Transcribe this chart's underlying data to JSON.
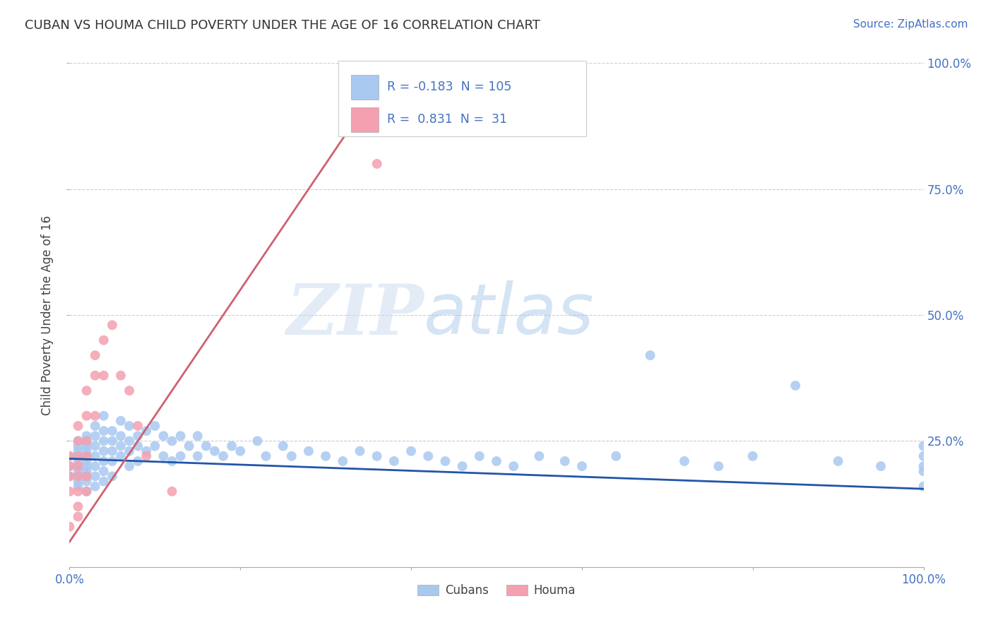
{
  "title": "CUBAN VS HOUMA CHILD POVERTY UNDER THE AGE OF 16 CORRELATION CHART",
  "source_text": "Source: ZipAtlas.com",
  "ylabel": "Child Poverty Under the Age of 16",
  "xlim": [
    0.0,
    1.0
  ],
  "ylim": [
    0.0,
    1.0
  ],
  "grid_color": "#cccccc",
  "background_color": "#ffffff",
  "watermark_zip": "ZIP",
  "watermark_atlas": "atlas",
  "legend_r_cuban": "-0.183",
  "legend_n_cuban": "105",
  "legend_r_houma": "0.831",
  "legend_n_houma": "31",
  "cuban_color": "#a8c8f0",
  "houma_color": "#f4a0b0",
  "cuban_line_color": "#2255aa",
  "houma_line_color": "#d06070",
  "legend_text_color": "#4472c4",
  "title_color": "#333333",
  "right_axis_color": "#4472c4",
  "marker_size": 100,
  "cuban_x": [
    0.0,
    0.0,
    0.0,
    0.01,
    0.01,
    0.01,
    0.01,
    0.01,
    0.01,
    0.01,
    0.01,
    0.01,
    0.01,
    0.02,
    0.02,
    0.02,
    0.02,
    0.02,
    0.02,
    0.02,
    0.02,
    0.02,
    0.02,
    0.02,
    0.03,
    0.03,
    0.03,
    0.03,
    0.03,
    0.03,
    0.03,
    0.04,
    0.04,
    0.04,
    0.04,
    0.04,
    0.04,
    0.04,
    0.05,
    0.05,
    0.05,
    0.05,
    0.05,
    0.06,
    0.06,
    0.06,
    0.06,
    0.07,
    0.07,
    0.07,
    0.07,
    0.08,
    0.08,
    0.08,
    0.09,
    0.09,
    0.1,
    0.1,
    0.11,
    0.11,
    0.12,
    0.12,
    0.13,
    0.13,
    0.14,
    0.15,
    0.15,
    0.16,
    0.17,
    0.18,
    0.19,
    0.2,
    0.22,
    0.23,
    0.25,
    0.26,
    0.28,
    0.3,
    0.32,
    0.34,
    0.36,
    0.38,
    0.4,
    0.42,
    0.44,
    0.46,
    0.48,
    0.5,
    0.52,
    0.55,
    0.58,
    0.6,
    0.64,
    0.68,
    0.72,
    0.76,
    0.8,
    0.85,
    0.9,
    0.95,
    1.0,
    1.0,
    1.0,
    1.0,
    1.0
  ],
  "cuban_y": [
    0.2,
    0.22,
    0.18,
    0.24,
    0.22,
    0.2,
    0.18,
    0.25,
    0.21,
    0.19,
    0.17,
    0.23,
    0.16,
    0.26,
    0.24,
    0.22,
    0.2,
    0.18,
    0.25,
    0.21,
    0.19,
    0.23,
    0.17,
    0.15,
    0.28,
    0.26,
    0.24,
    0.22,
    0.2,
    0.18,
    0.16,
    0.3,
    0.27,
    0.25,
    0.23,
    0.21,
    0.19,
    0.17,
    0.27,
    0.25,
    0.23,
    0.21,
    0.18,
    0.29,
    0.26,
    0.24,
    0.22,
    0.28,
    0.25,
    0.23,
    0.2,
    0.26,
    0.24,
    0.21,
    0.27,
    0.23,
    0.28,
    0.24,
    0.26,
    0.22,
    0.25,
    0.21,
    0.26,
    0.22,
    0.24,
    0.26,
    0.22,
    0.24,
    0.23,
    0.22,
    0.24,
    0.23,
    0.25,
    0.22,
    0.24,
    0.22,
    0.23,
    0.22,
    0.21,
    0.23,
    0.22,
    0.21,
    0.23,
    0.22,
    0.21,
    0.2,
    0.22,
    0.21,
    0.2,
    0.22,
    0.21,
    0.2,
    0.22,
    0.42,
    0.21,
    0.2,
    0.22,
    0.36,
    0.21,
    0.2,
    0.16,
    0.22,
    0.19,
    0.24,
    0.2
  ],
  "houma_x": [
    0.0,
    0.0,
    0.0,
    0.0,
    0.0,
    0.01,
    0.01,
    0.01,
    0.01,
    0.01,
    0.01,
    0.01,
    0.01,
    0.02,
    0.02,
    0.02,
    0.02,
    0.02,
    0.02,
    0.03,
    0.03,
    0.03,
    0.04,
    0.04,
    0.05,
    0.06,
    0.07,
    0.08,
    0.09,
    0.12,
    0.36
  ],
  "houma_y": [
    0.22,
    0.2,
    0.18,
    0.15,
    0.08,
    0.28,
    0.25,
    0.22,
    0.2,
    0.18,
    0.15,
    0.12,
    0.1,
    0.35,
    0.3,
    0.25,
    0.22,
    0.18,
    0.15,
    0.42,
    0.38,
    0.3,
    0.45,
    0.38,
    0.48,
    0.38,
    0.35,
    0.28,
    0.22,
    0.15,
    0.8
  ],
  "cuban_line_x0": 0.0,
  "cuban_line_x1": 1.0,
  "cuban_line_y0": 0.215,
  "cuban_line_y1": 0.155,
  "houma_line_x0": 0.0,
  "houma_line_x1": 0.36,
  "houma_line_y0": 0.05,
  "houma_line_y1": 0.95
}
